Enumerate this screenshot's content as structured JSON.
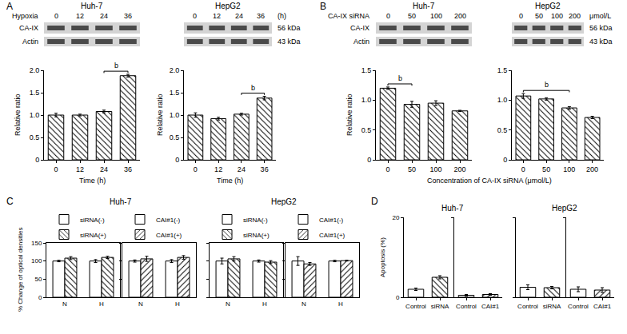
{
  "blots": [
    {
      "panel_label": "A",
      "header": "Hypoxia",
      "lane_unit": "(h)",
      "rows": [
        "CA-IX",
        "Actin"
      ],
      "sizes": [
        "56 kDa",
        "43 kDa"
      ],
      "cells": [
        {
          "name": "Huh-7",
          "lanes": [
            "0",
            "12",
            "24",
            "36"
          ]
        },
        {
          "name": "HepG2",
          "lanes": [
            "0",
            "12",
            "24",
            "36"
          ]
        }
      ]
    },
    {
      "panel_label": "B",
      "header": "CA-IX siRNA",
      "lane_unit": "μmol/L",
      "rows": [
        "CA-IX",
        "Actin"
      ],
      "sizes": [
        "56 kDa",
        "43 kDa"
      ],
      "cells": [
        {
          "name": "Huh-7",
          "lanes": [
            "0",
            "50",
            "100",
            "200"
          ]
        },
        {
          "name": "HepG2",
          "lanes": [
            "0",
            "50",
            "100",
            "200"
          ]
        }
      ]
    }
  ],
  "chart_data": [
    {
      "type": "bar",
      "x_label": "Time (h)",
      "y_label": "Relative ratio",
      "categories": [
        "0",
        "12",
        "24",
        "36"
      ],
      "series": [
        {
          "color": "#ffffff",
          "marker": "backslash",
          "values": [
            1.0,
            1.0,
            1.08,
            1.88
          ],
          "errors": [
            0.04,
            0.02,
            0.03,
            0.03
          ]
        }
      ],
      "ylim": [
        0,
        2
      ],
      "yticks": [
        0,
        0.5,
        {
          "value": 1,
          "label": "1.0"
        },
        1.5,
        {
          "value": 2,
          "label": "2.0"
        }
      ],
      "annotations": [
        {
          "text": "b",
          "between": [
            "24",
            "36"
          ]
        }
      ]
    },
    {
      "type": "bar",
      "x_label": "Time (h)",
      "y_label": "Relative ratio",
      "categories": [
        "0",
        "12",
        "24",
        "36"
      ],
      "series": [
        {
          "color": "#ffffff",
          "marker": "backslash",
          "values": [
            1.0,
            0.92,
            1.02,
            1.38
          ],
          "errors": [
            0.05,
            0.03,
            0.02,
            0.04
          ]
        }
      ],
      "ylim": [
        0,
        2
      ],
      "yticks": [
        0,
        0.5,
        {
          "value": 1,
          "label": "1.0"
        },
        1.5,
        {
          "value": 2,
          "label": "2.0"
        }
      ],
      "annotations": [
        {
          "text": "b",
          "between": [
            "24",
            "36"
          ]
        }
      ]
    },
    {
      "type": "bar",
      "x_label": "Concentration of CA-IX siRNA (μmol/L)",
      "y_label": "Relative ratio",
      "categories": [
        "0",
        "50",
        "100",
        "200"
      ],
      "series": [
        {
          "color": "#ffffff",
          "marker": "backslash",
          "values": [
            1.2,
            0.93,
            0.95,
            0.82
          ],
          "errors": [
            0.02,
            0.05,
            0.04,
            0.01
          ]
        }
      ],
      "ylim": [
        0,
        1.5
      ],
      "yticks": [
        0,
        0.5,
        {
          "value": 1,
          "label": "1.0"
        },
        1.5
      ],
      "annotations": [
        {
          "text": "b",
          "between": [
            "0",
            "50"
          ]
        }
      ]
    },
    {
      "type": "bar",
      "categories": [
        "0",
        "50",
        "100",
        "200"
      ],
      "series": [
        {
          "color": "#ffffff",
          "marker": "backslash",
          "values": [
            1.07,
            1.02,
            0.87,
            0.71
          ],
          "errors": [
            0.04,
            0.02,
            0.02,
            0.02
          ]
        }
      ],
      "ylim": [
        0,
        1.5
      ],
      "yticks": [
        0,
        0.5,
        {
          "value": 1,
          "label": "1.0"
        },
        1.5
      ],
      "annotations": [
        {
          "text": "b",
          "between": [
            "0",
            "100"
          ]
        }
      ]
    },
    {
      "type": "bar",
      "panel_label": "C",
      "title": "Huh-7",
      "y_label": "% Change of optical densities",
      "categories": [
        "N",
        "H"
      ],
      "legend": "top",
      "series": [
        {
          "name": "siRNA(-)",
          "color": "#ffffff",
          "marker": "none",
          "values": [
            100,
            100
          ],
          "errors": [
            2,
            4
          ]
        },
        {
          "name": "siRNA(+)",
          "color": "#ffffff",
          "marker": "backslash",
          "values": [
            108,
            110
          ],
          "errors": [
            4,
            3
          ]
        }
      ],
      "ylim": [
        0,
        150
      ],
      "yticks": [
        0,
        50,
        100,
        150
      ]
    },
    {
      "type": "bar",
      "categories": [
        "N",
        "H"
      ],
      "legend": "top",
      "tick_labels": "x",
      "series": [
        {
          "name": "CAI#1(-)",
          "color": "#ffffff",
          "marker": "none",
          "values": [
            100,
            100
          ],
          "errors": [
            3,
            4
          ]
        },
        {
          "name": "CAI#1(+)",
          "color": "#ffffff",
          "marker": "slash",
          "values": [
            106,
            110
          ],
          "errors": [
            7,
            5
          ]
        }
      ],
      "ylim": [
        0,
        150
      ],
      "yticks": [
        0,
        50,
        100,
        150
      ]
    },
    {
      "type": "bar",
      "title": "HepG2",
      "categories": [
        "N",
        "H"
      ],
      "legend": "top",
      "tick_labels": "x",
      "series": [
        {
          "name": "siRNA(-)",
          "color": "#ffffff",
          "marker": "none",
          "values": [
            100,
            100
          ],
          "errors": [
            8,
            3
          ]
        },
        {
          "name": "siRNA(+)",
          "color": "#ffffff",
          "marker": "backslash",
          "values": [
            106,
            97
          ],
          "errors": [
            6,
            4
          ]
        }
      ],
      "ylim": [
        0,
        150
      ],
      "yticks": [
        0,
        50,
        100,
        150
      ]
    },
    {
      "type": "bar",
      "categories": [
        "N",
        "H"
      ],
      "legend": "top",
      "tick_labels": "x",
      "series": [
        {
          "name": "CAI#1(-)",
          "color": "#ffffff",
          "marker": "none",
          "values": [
            100,
            100
          ],
          "errors": [
            12,
            2
          ]
        },
        {
          "name": "CAI#1(+)",
          "color": "#ffffff",
          "marker": "slash",
          "values": [
            92,
            101
          ],
          "errors": [
            4,
            1
          ]
        }
      ],
      "ylim": [
        0,
        150
      ],
      "yticks": [
        0,
        50,
        100,
        150
      ]
    },
    {
      "type": "bar",
      "panel_label": "D",
      "title": "Huh-7",
      "y_label": "Apoptosis (%)",
      "categories": [
        "Control",
        "siRNA"
      ],
      "stacked": true,
      "series": [
        {
          "color": "#ffffff",
          "marker": "none",
          "values": [
            2.0,
            null
          ],
          "errors": [
            0.3,
            null
          ]
        },
        {
          "color": "#ffffff",
          "marker": "backslash",
          "values": [
            null,
            5.0
          ],
          "errors": [
            null,
            0.4
          ]
        }
      ],
      "ylim": [
        0,
        20
      ],
      "yticks": [
        0,
        20
      ]
    },
    {
      "type": "bar",
      "categories": [
        "Control",
        "CAI#1"
      ],
      "stacked": true,
      "tick_labels": "x",
      "series": [
        {
          "color": "#ffffff",
          "marker": "none",
          "values": [
            0.5,
            null
          ],
          "errors": [
            0.2,
            null
          ]
        },
        {
          "color": "#ffffff",
          "marker": "slash",
          "values": [
            null,
            0.7
          ],
          "errors": [
            null,
            0.2
          ]
        }
      ],
      "ylim": [
        0,
        20
      ],
      "yticks": [
        0,
        20
      ]
    },
    {
      "type": "bar",
      "title": "HepG2",
      "categories": [
        "Control",
        "siRNA"
      ],
      "stacked": true,
      "tick_labels": "x",
      "series": [
        {
          "color": "#ffffff",
          "marker": "none",
          "values": [
            2.5,
            null
          ],
          "errors": [
            0.6,
            null
          ]
        },
        {
          "color": "#ffffff",
          "marker": "backslash",
          "values": [
            null,
            2.4
          ],
          "errors": [
            null,
            0.3
          ]
        }
      ],
      "ylim": [
        0,
        20
      ],
      "yticks": [
        0,
        20
      ]
    },
    {
      "type": "bar",
      "categories": [
        "Control",
        "CAI#1"
      ],
      "stacked": true,
      "tick_labels": "x",
      "series": [
        {
          "color": "#ffffff",
          "marker": "none",
          "values": [
            2.0,
            null
          ],
          "errors": [
            0.6,
            null
          ]
        },
        {
          "color": "#ffffff",
          "marker": "slash",
          "values": [
            null,
            1.8
          ],
          "errors": [
            null,
            0.6
          ]
        }
      ],
      "ylim": [
        0,
        20
      ],
      "yticks": [
        0,
        20
      ]
    }
  ]
}
